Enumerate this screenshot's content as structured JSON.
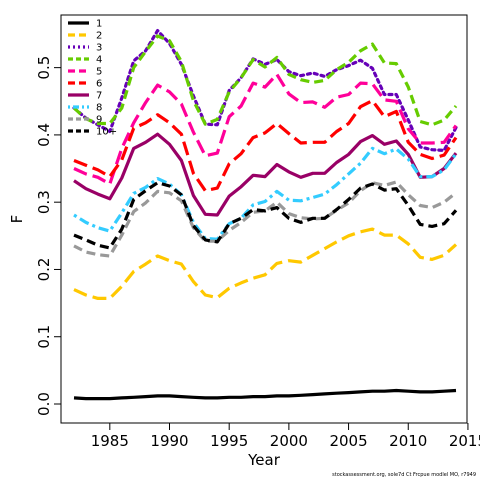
{
  "chart_data": {
    "type": "line",
    "xlabel": "Year",
    "ylabel": "F",
    "xlim": [
      1982,
      2014
    ],
    "ylim": [
      0,
      0.55
    ],
    "x_ticks": [
      1985,
      1990,
      1995,
      2000,
      2005,
      2010,
      2015
    ],
    "y_ticks": [
      0.0,
      0.1,
      0.2,
      0.3,
      0.4,
      0.5
    ],
    "y_tick_labels": [
      "0.0",
      "0.1",
      "0.2",
      "0.3",
      "0.4",
      "0.5"
    ],
    "x_tick_labels": [
      "1985",
      "1990",
      "1995",
      "2000",
      "2005",
      "2010",
      "2015"
    ],
    "legend_position": "top-left",
    "grid": false,
    "footer": "stockassessment.org, sole7d Ct Frcpue modlel MO, r7949",
    "x": [
      1982,
      1983,
      1984,
      1985,
      1986,
      1987,
      1988,
      1989,
      1990,
      1991,
      1992,
      1993,
      1994,
      1995,
      1996,
      1997,
      1998,
      1999,
      2000,
      2001,
      2002,
      2003,
      2004,
      2005,
      2006,
      2007,
      2008,
      2009,
      2010,
      2011,
      2012,
      2013,
      2014
    ],
    "series": [
      {
        "name": "1",
        "color": "#000000",
        "dash": "solid",
        "values": [
          0.009,
          0.008,
          0.008,
          0.008,
          0.009,
          0.01,
          0.011,
          0.012,
          0.012,
          0.011,
          0.01,
          0.009,
          0.009,
          0.01,
          0.01,
          0.011,
          0.011,
          0.012,
          0.012,
          0.013,
          0.014,
          0.015,
          0.016,
          0.017,
          0.018,
          0.019,
          0.019,
          0.02,
          0.019,
          0.018,
          0.018,
          0.019,
          0.02
        ]
      },
      {
        "name": "2",
        "color": "#FFC800",
        "dash": "long",
        "values": [
          0.17,
          0.162,
          0.157,
          0.157,
          0.175,
          0.197,
          0.208,
          0.22,
          0.213,
          0.208,
          0.182,
          0.162,
          0.158,
          0.172,
          0.18,
          0.187,
          0.192,
          0.209,
          0.213,
          0.211,
          0.221,
          0.231,
          0.241,
          0.25,
          0.256,
          0.26,
          0.251,
          0.251,
          0.238,
          0.218,
          0.215,
          0.221,
          0.237
        ]
      },
      {
        "name": "3",
        "color": "#6600B8",
        "dash": "dot",
        "values": [
          0.44,
          0.425,
          0.415,
          0.405,
          0.455,
          0.51,
          0.525,
          0.555,
          0.536,
          0.505,
          0.458,
          0.416,
          0.415,
          0.466,
          0.485,
          0.513,
          0.505,
          0.512,
          0.494,
          0.488,
          0.492,
          0.487,
          0.497,
          0.503,
          0.511,
          0.499,
          0.46,
          0.46,
          0.422,
          0.382,
          0.378,
          0.377,
          0.411
        ]
      },
      {
        "name": "4",
        "color": "#66CC00",
        "dash": "dash",
        "values": [
          0.44,
          0.424,
          0.417,
          0.417,
          0.44,
          0.5,
          0.524,
          0.547,
          0.54,
          0.509,
          0.451,
          0.416,
          0.423,
          0.464,
          0.485,
          0.512,
          0.501,
          0.515,
          0.49,
          0.482,
          0.478,
          0.481,
          0.497,
          0.508,
          0.525,
          0.535,
          0.507,
          0.506,
          0.471,
          0.42,
          0.415,
          0.422,
          0.443
        ]
      },
      {
        "name": "5",
        "color": "#FF0099",
        "dash": "long",
        "values": [
          0.35,
          0.342,
          0.337,
          0.327,
          0.38,
          0.418,
          0.448,
          0.474,
          0.464,
          0.446,
          0.404,
          0.369,
          0.373,
          0.427,
          0.443,
          0.477,
          0.471,
          0.49,
          0.461,
          0.448,
          0.449,
          0.441,
          0.456,
          0.46,
          0.477,
          0.476,
          0.452,
          0.45,
          0.409,
          0.388,
          0.388,
          0.389,
          0.414
        ]
      },
      {
        "name": "6",
        "color": "#FF0000",
        "dash": "long",
        "values": [
          0.362,
          0.355,
          0.348,
          0.338,
          0.363,
          0.41,
          0.418,
          0.43,
          0.418,
          0.401,
          0.343,
          0.317,
          0.321,
          0.357,
          0.372,
          0.396,
          0.403,
          0.417,
          0.402,
          0.388,
          0.389,
          0.389,
          0.405,
          0.417,
          0.442,
          0.451,
          0.427,
          0.435,
          0.389,
          0.371,
          0.365,
          0.37,
          0.396
        ]
      },
      {
        "name": "7",
        "color": "#990066",
        "dash": "solid",
        "values": [
          0.332,
          0.32,
          0.312,
          0.305,
          0.336,
          0.38,
          0.389,
          0.401,
          0.386,
          0.362,
          0.31,
          0.282,
          0.281,
          0.309,
          0.323,
          0.34,
          0.338,
          0.356,
          0.345,
          0.337,
          0.343,
          0.343,
          0.359,
          0.371,
          0.39,
          0.399,
          0.386,
          0.391,
          0.371,
          0.337,
          0.338,
          0.35,
          0.373
        ]
      },
      {
        "name": "8",
        "color": "#33CCFF",
        "dash": "dotdash",
        "values": [
          0.281,
          0.27,
          0.262,
          0.257,
          0.284,
          0.313,
          0.322,
          0.335,
          0.327,
          0.311,
          0.27,
          0.246,
          0.245,
          0.268,
          0.276,
          0.296,
          0.301,
          0.316,
          0.303,
          0.302,
          0.307,
          0.312,
          0.326,
          0.342,
          0.358,
          0.38,
          0.372,
          0.379,
          0.364,
          0.338,
          0.338,
          0.348,
          0.372
        ]
      },
      {
        "name": "9",
        "color": "#999999",
        "dash": "dash",
        "values": [
          0.235,
          0.226,
          0.222,
          0.22,
          0.251,
          0.286,
          0.299,
          0.316,
          0.314,
          0.302,
          0.262,
          0.242,
          0.242,
          0.258,
          0.27,
          0.285,
          0.287,
          0.3,
          0.283,
          0.277,
          0.275,
          0.276,
          0.288,
          0.299,
          0.317,
          0.329,
          0.325,
          0.33,
          0.311,
          0.295,
          0.292,
          0.3,
          0.314
        ]
      },
      {
        "name": "10+",
        "color": "#000000",
        "dash": "dash",
        "values": [
          0.251,
          0.244,
          0.236,
          0.232,
          0.26,
          0.304,
          0.317,
          0.329,
          0.324,
          0.311,
          0.265,
          0.244,
          0.241,
          0.268,
          0.276,
          0.289,
          0.287,
          0.292,
          0.276,
          0.27,
          0.276,
          0.276,
          0.289,
          0.304,
          0.321,
          0.327,
          0.318,
          0.32,
          0.295,
          0.267,
          0.264,
          0.268,
          0.288
        ]
      }
    ]
  }
}
